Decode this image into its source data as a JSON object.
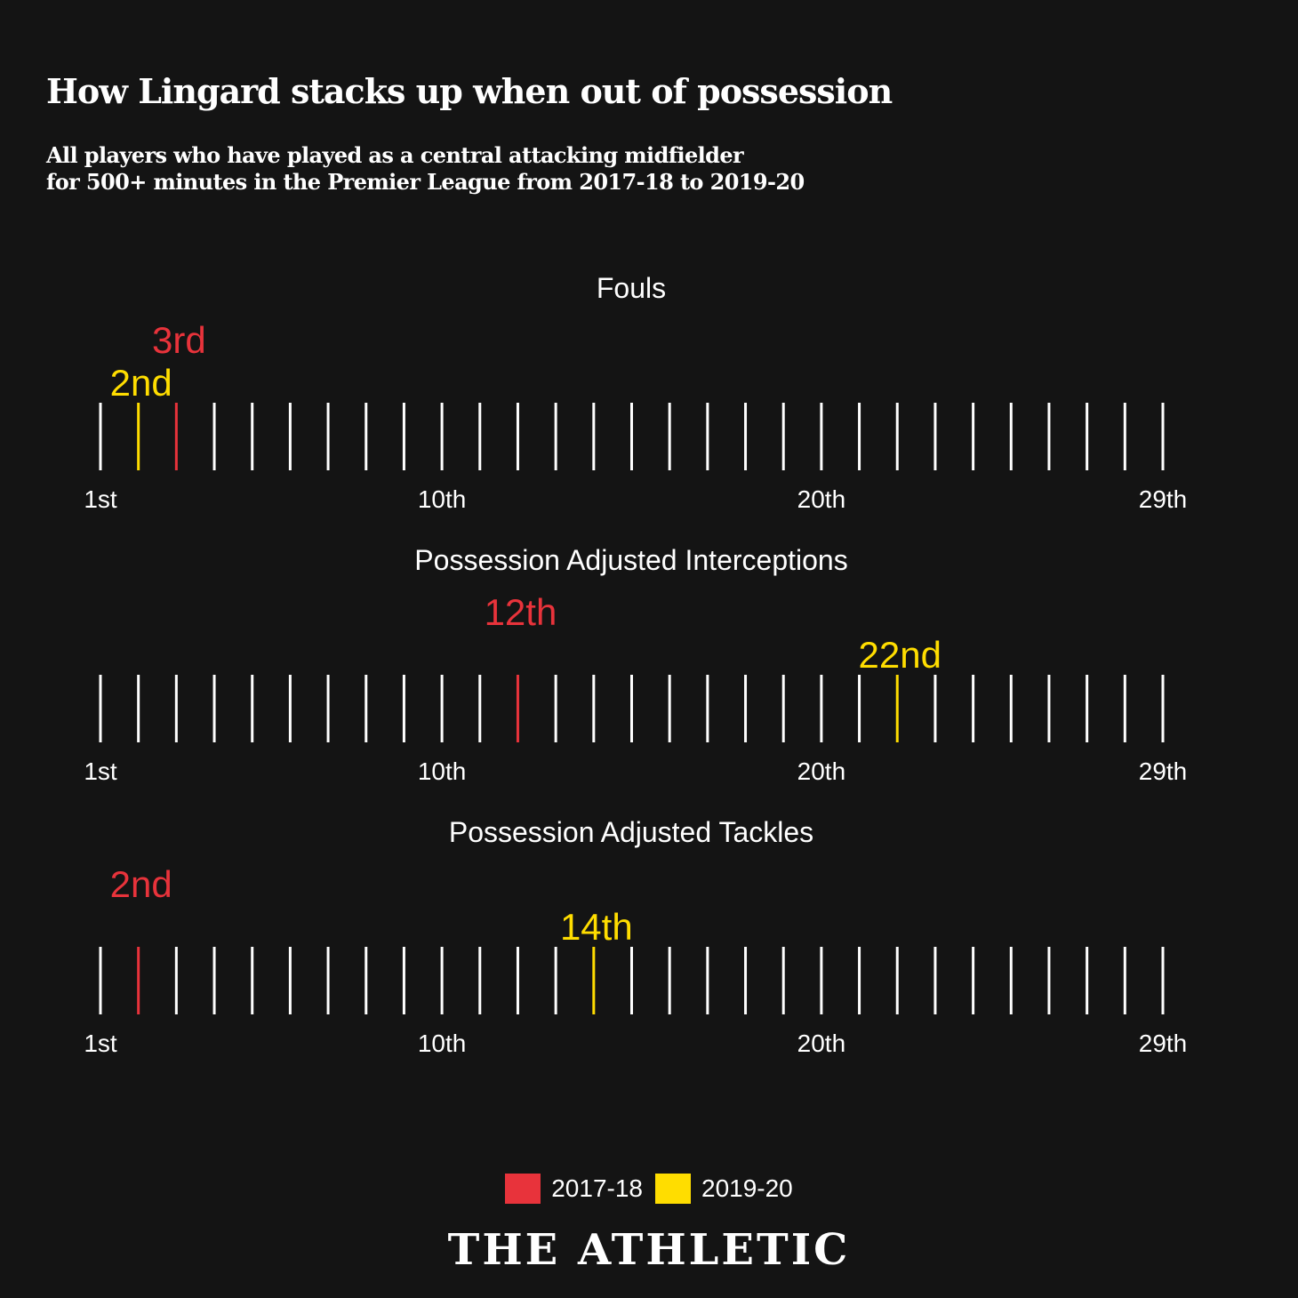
{
  "title": "How Lingard stacks up when out of possession",
  "subtitle_line1": "All players who have played as a central attacking midfielder",
  "subtitle_line2": "for 500+ minutes in the Premier League from 2017-18 to 2019-20",
  "colors": {
    "background": "#141414",
    "tick": "#ffffff",
    "season_2017_18": "#e8333b",
    "season_2019_20": "#ffdd00"
  },
  "chart_data": [
    {
      "type": "strip",
      "title": "Fouls",
      "ranks": 29,
      "tick_labels": [
        {
          "rank": 1,
          "label": "1st"
        },
        {
          "rank": 10,
          "label": "10th"
        },
        {
          "rank": 20,
          "label": "20th"
        },
        {
          "rank": 29,
          "label": "29th"
        }
      ],
      "series": [
        {
          "name": "2017-18",
          "rank": 3,
          "label": "3rd"
        },
        {
          "name": "2019-20",
          "rank": 2,
          "label": "2nd"
        }
      ]
    },
    {
      "type": "strip",
      "title": "Possession Adjusted Interceptions",
      "ranks": 29,
      "tick_labels": [
        {
          "rank": 1,
          "label": "1st"
        },
        {
          "rank": 10,
          "label": "10th"
        },
        {
          "rank": 20,
          "label": "20th"
        },
        {
          "rank": 29,
          "label": "29th"
        }
      ],
      "series": [
        {
          "name": "2017-18",
          "rank": 12,
          "label": "12th"
        },
        {
          "name": "2019-20",
          "rank": 22,
          "label": "22nd"
        }
      ]
    },
    {
      "type": "strip",
      "title": "Possession Adjusted Tackles",
      "ranks": 29,
      "tick_labels": [
        {
          "rank": 1,
          "label": "1st"
        },
        {
          "rank": 10,
          "label": "10th"
        },
        {
          "rank": 20,
          "label": "20th"
        },
        {
          "rank": 29,
          "label": "29th"
        }
      ],
      "series": [
        {
          "name": "2017-18",
          "rank": 2,
          "label": "2nd"
        },
        {
          "name": "2019-20",
          "rank": 14,
          "label": "14th"
        }
      ]
    }
  ],
  "legend": [
    {
      "label": "2017-18",
      "color": "#e8333b"
    },
    {
      "label": "2019-20",
      "color": "#ffdd00"
    }
  ],
  "brand": "THE ATHLETIC"
}
